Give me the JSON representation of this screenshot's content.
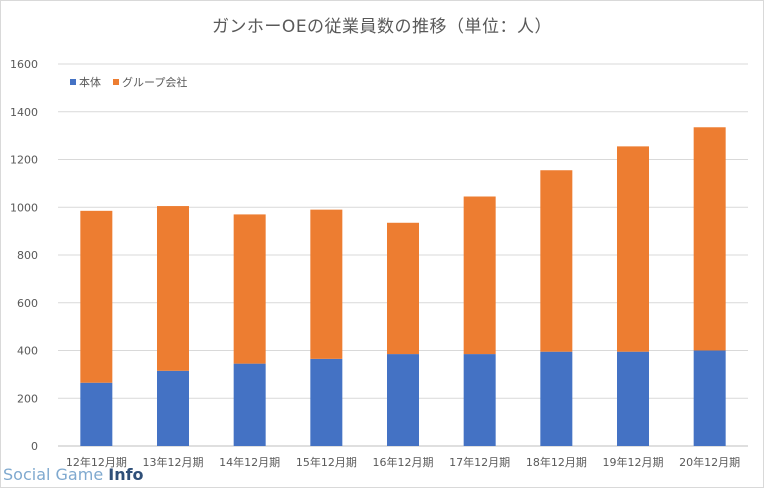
{
  "chart_data": {
    "type": "bar",
    "stacked": true,
    "title": "ガンホーOEの従業員数の推移（単位：人）",
    "categories": [
      "12年12月期",
      "13年12月期",
      "14年12月期",
      "15年12月期",
      "16年12月期",
      "17年12月期",
      "18年12月期",
      "19年12月期",
      "20年12月期"
    ],
    "series": [
      {
        "name": "本体",
        "color": "#4472c4",
        "values": [
          265,
          315,
          345,
          365,
          385,
          385,
          395,
          395,
          400
        ]
      },
      {
        "name": "グループ会社",
        "color": "#ed7d31",
        "values": [
          720,
          690,
          625,
          625,
          550,
          660,
          760,
          860,
          935
        ]
      }
    ],
    "ylim": [
      0,
      1600
    ],
    "yticks": [
      0,
      200,
      400,
      600,
      800,
      1000,
      1200,
      1400,
      1600
    ],
    "grid": true,
    "legend_position": "top-left"
  },
  "watermark": {
    "part_a": "Social Game ",
    "part_b": "Info"
  }
}
